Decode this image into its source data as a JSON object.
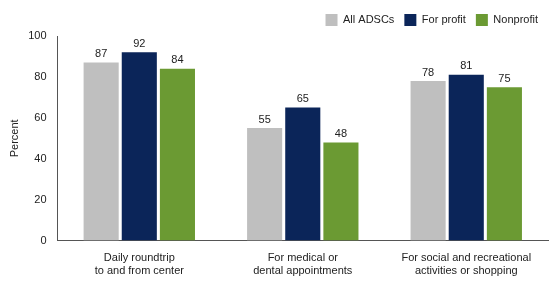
{
  "chart_data": {
    "type": "bar",
    "categories": [
      [
        "Daily roundtrip",
        "to and from center"
      ],
      [
        "For medical or",
        "dental appointments"
      ],
      [
        "For social and recreational",
        "activities or shopping"
      ]
    ],
    "series": [
      {
        "name": "All ADSCs",
        "color": "#bfbfbf",
        "values": [
          87,
          55,
          78
        ]
      },
      {
        "name": "For profit",
        "color": "#0b2559",
        "values": [
          92,
          65,
          81
        ]
      },
      {
        "name": "Nonprofit",
        "color": "#6b9a33",
        "values": [
          84,
          48,
          75
        ]
      }
    ],
    "y_label": "Percent",
    "ylim": [
      0,
      100
    ],
    "yticks": [
      0,
      20,
      40,
      60,
      80,
      100
    ],
    "grid": false,
    "legend": "upper right",
    "data_labels": true
  }
}
